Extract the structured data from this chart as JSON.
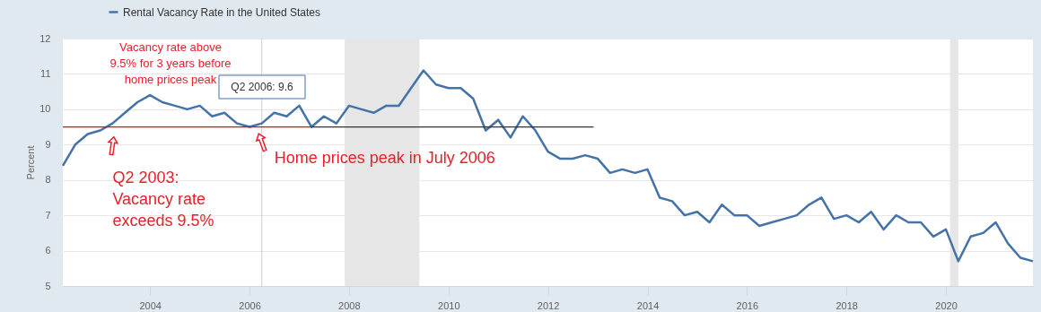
{
  "chart_data": {
    "type": "line",
    "ylabel": "Percent",
    "legend": "top left",
    "grid": "y",
    "x": [
      "2002-04",
      "2002-07",
      "2002-10",
      "2003-01",
      "2003-04",
      "2003-07",
      "2003-10",
      "2004-01",
      "2004-04",
      "2004-07",
      "2004-10",
      "2005-01",
      "2005-04",
      "2005-07",
      "2005-10",
      "2006-01",
      "2006-04",
      "2006-07",
      "2006-10",
      "2007-01",
      "2007-04",
      "2007-07",
      "2007-10",
      "2008-01",
      "2008-04",
      "2008-07",
      "2008-10",
      "2009-01",
      "2009-04",
      "2009-07",
      "2009-10",
      "2010-01",
      "2010-04",
      "2010-07",
      "2010-10",
      "2011-01",
      "2011-04",
      "2011-07",
      "2011-10",
      "2012-01",
      "2012-04",
      "2012-07",
      "2012-10",
      "2013-01",
      "2013-04",
      "2013-07",
      "2013-10",
      "2014-01",
      "2014-04",
      "2014-07",
      "2014-10",
      "2015-01",
      "2015-04",
      "2015-07",
      "2015-10",
      "2016-01",
      "2016-04",
      "2016-07",
      "2016-10",
      "2017-01",
      "2017-04",
      "2017-07",
      "2017-10",
      "2018-01",
      "2018-04",
      "2018-07",
      "2018-10",
      "2019-01",
      "2019-04",
      "2019-07",
      "2019-10",
      "2020-01",
      "2020-04",
      "2020-07",
      "2020-10",
      "2021-01",
      "2021-04",
      "2021-07",
      "2021-10"
    ],
    "series": [
      {
        "name": "Rental Vacancy Rate in the United States",
        "color": "#4572a7",
        "values": [
          8.4,
          9.0,
          9.3,
          9.4,
          9.6,
          9.9,
          10.2,
          10.4,
          10.2,
          10.1,
          10.0,
          10.1,
          9.8,
          9.9,
          9.6,
          9.5,
          9.6,
          9.9,
          9.8,
          10.1,
          9.5,
          9.8,
          9.6,
          10.1,
          10.0,
          9.9,
          10.1,
          10.1,
          10.6,
          11.1,
          10.7,
          10.6,
          10.6,
          10.3,
          9.4,
          9.7,
          9.2,
          9.8,
          9.4,
          8.8,
          8.6,
          8.6,
          8.7,
          8.6,
          8.2,
          8.3,
          8.2,
          8.3,
          7.5,
          7.4,
          7.0,
          7.1,
          6.8,
          7.3,
          7.0,
          7.0,
          6.7,
          6.8,
          6.9,
          7.0,
          7.3,
          7.5,
          6.9,
          7.0,
          6.8,
          7.1,
          6.6,
          7.0,
          6.8,
          6.8,
          6.4,
          6.6,
          5.7,
          6.4,
          6.5,
          6.8,
          6.2,
          5.8,
          5.7
        ]
      },
      {
        "type": "line",
        "color": "#ff0000",
        "x": [
          "2002-04",
          "2007-04"
        ],
        "values": [
          9.5,
          9.5
        ]
      },
      {
        "type": "line",
        "color": "#333333",
        "x": [
          "2007-04",
          "2012-12"
        ],
        "values": [
          9.5,
          9.5
        ]
      }
    ],
    "xlim": [
      "2002-04",
      "2021-10"
    ],
    "xticks": [
      "2004",
      "2006",
      "2008",
      "2010",
      "2012",
      "2014",
      "2016",
      "2018",
      "2020"
    ],
    "ylim": [
      5,
      12
    ],
    "yticks": [
      5,
      6,
      7,
      8,
      9,
      10,
      11,
      12
    ],
    "bands": [
      {
        "axis": "x",
        "from": "2007-12",
        "to": "2009-06",
        "color": "#e6e6e6"
      },
      {
        "axis": "x",
        "from": "2020-02",
        "to": "2020-04",
        "color": "#e6e6e6"
      }
    ],
    "ref_lines": [
      {
        "axis": "x",
        "value": "2006-04",
        "color": "#cccccc"
      }
    ],
    "annotations": [
      "Vacancy rate above\n9.5% for 3 years before\nhome prices peak",
      {
        "text": "Q2 2003:\nVacancy rate\nexceeds 9.5%",
        "x": "2003-04",
        "y": 9.5
      },
      {
        "text": "Home prices peak in July 2006",
        "x": "2006-04",
        "y": 9.6
      },
      "Q2 2006: 9.6"
    ]
  }
}
